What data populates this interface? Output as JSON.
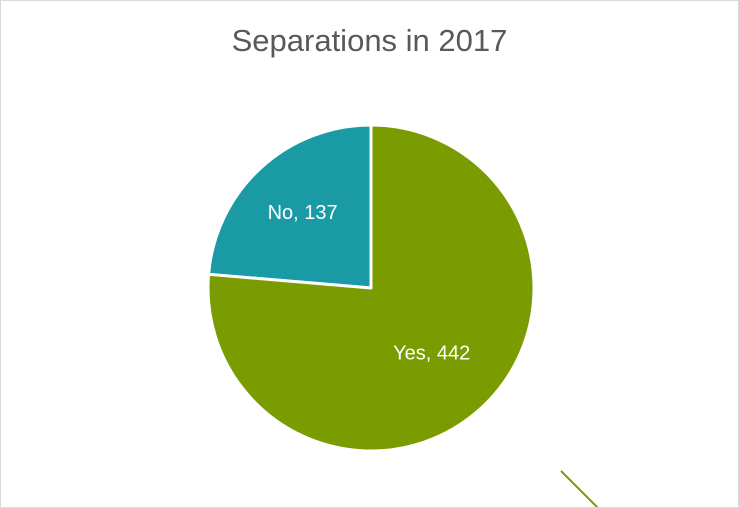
{
  "chart_data": {
    "type": "pie",
    "title": "Separations in 2017",
    "categories": [
      "No",
      "Yes"
    ],
    "values": [
      137,
      442
    ],
    "labels": [
      "No, 137",
      "Yes, 442"
    ],
    "colors": [
      "#1a9aa5",
      "#7a9c00"
    ],
    "start": "12 o'clock",
    "direction": "counterclockwise",
    "legend": "none"
  }
}
